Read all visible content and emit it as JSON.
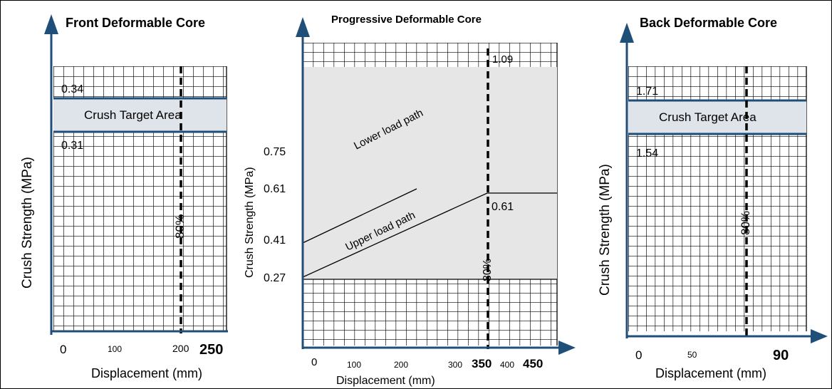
{
  "colors": {
    "axis": "#1f4e79",
    "band_line": "#1f4e79",
    "target_fill": "#dfe3ea",
    "region_fill": "#e6e6e6",
    "grid": "#000000"
  },
  "panels": {
    "front": {
      "title": "Front Deformable Core",
      "ylabel": "Crush Strength (MPa)",
      "xlabel": "Displacement (mm)",
      "band_label": "Crush Target Area",
      "upper_value": "0.34",
      "lower_value": "0.31",
      "percent_label": "80%",
      "x_ticks": [
        "0",
        "100",
        "200",
        "250"
      ]
    },
    "progressive": {
      "title": "Progressive Deformable Core",
      "ylabel": "Crush Strength (MPa)",
      "xlabel": "Displacement (mm)",
      "y_ticks": [
        "0.75",
        "0.61",
        "0.41",
        "0.27"
      ],
      "x_ticks": [
        "0",
        "100",
        "200",
        "300",
        "350",
        "400",
        "450"
      ],
      "lower_path_label": "Lower load path",
      "upper_path_label": "Upper load path",
      "top_value": "1.09",
      "right_value": "0.61",
      "percent_label": "80%"
    },
    "back": {
      "title": "Back Deformable Core",
      "ylabel": "Crush Strength (MPa)",
      "xlabel": "Displacement (mm)",
      "band_label": "Crush Target Area",
      "upper_value": "1.71",
      "lower_value": "1.54",
      "percent_label": "80%",
      "x_ticks": [
        "0",
        "50",
        "90"
      ]
    }
  }
}
